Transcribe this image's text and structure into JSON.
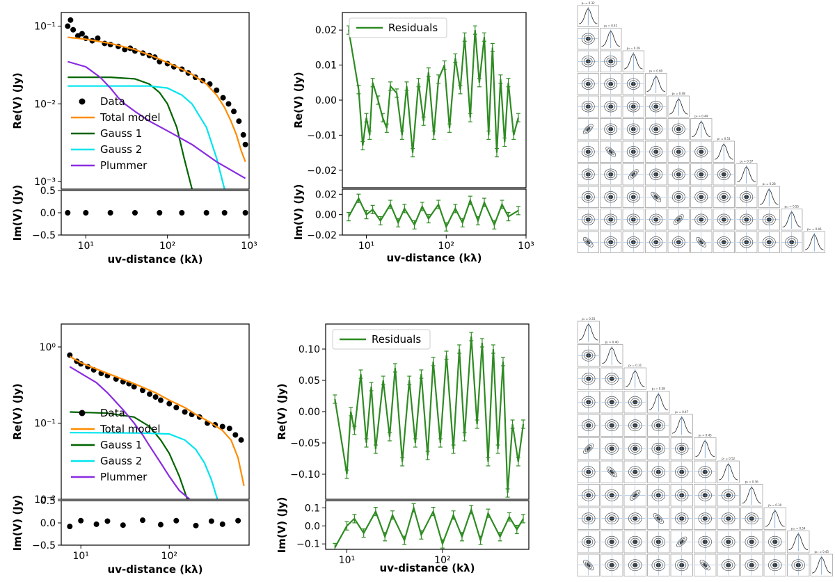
{
  "chart_data": [
    {
      "id": "row1-model",
      "type": "line+scatter",
      "panels": {
        "top": {
          "ylabel": "Re(V) (Jy)",
          "yscale": "log",
          "ylim": [
            0.0008,
            0.15
          ],
          "yticks": [
            {
              "v": 0.1,
              "t": "10⁻¹"
            },
            {
              "v": 0.01,
              "t": "10⁻²"
            },
            {
              "v": 0.001,
              "t": "10⁻³"
            }
          ]
        },
        "bottom": {
          "ylabel": "Im(V) (Jy)",
          "ylim": [
            -0.5,
            0.5
          ],
          "yticks": [
            {
              "v": 0.5,
              "t": "0.5"
            },
            {
              "v": 0.0,
              "t": "0.0"
            },
            {
              "v": -0.5,
              "t": "−0.5"
            }
          ]
        }
      },
      "xlabel": "uv-distance (kλ)",
      "xscale": "log",
      "xlim": [
        5,
        1000
      ],
      "xticks": [
        {
          "v": 10,
          "t": "10¹"
        },
        {
          "v": 100,
          "t": "10²"
        },
        {
          "v": 1000,
          "t": "10³"
        }
      ],
      "legend": {
        "position": "center-left",
        "entries": [
          "Data",
          "Total model",
          "Gauss 1",
          "Gauss 2",
          "Plummer"
        ]
      },
      "series": [
        {
          "name": "Data",
          "kind": "scatter",
          "x": [
            6,
            6.5,
            7,
            8,
            9,
            10,
            12,
            14,
            17,
            20,
            25,
            30,
            35,
            40,
            50,
            60,
            70,
            80,
            100,
            120,
            150,
            180,
            220,
            270,
            330,
            400,
            480,
            560,
            650,
            750,
            850,
            900
          ],
          "y": [
            0.1,
            0.12,
            0.09,
            0.075,
            0.08,
            0.07,
            0.065,
            0.07,
            0.06,
            0.058,
            0.055,
            0.05,
            0.052,
            0.048,
            0.045,
            0.042,
            0.04,
            0.035,
            0.033,
            0.03,
            0.028,
            0.025,
            0.022,
            0.02,
            0.018,
            0.015,
            0.012,
            0.01,
            0.008,
            0.006,
            0.004,
            0.003
          ]
        },
        {
          "name": "Total model",
          "kind": "line",
          "x": [
            6,
            10,
            20,
            40,
            70,
            100,
            150,
            200,
            300,
            400,
            500,
            600,
            700,
            800,
            900
          ],
          "y": [
            0.072,
            0.068,
            0.06,
            0.05,
            0.04,
            0.034,
            0.028,
            0.024,
            0.018,
            0.013,
            0.009,
            0.006,
            0.004,
            0.0025,
            0.0018
          ]
        },
        {
          "name": "Gauss 1",
          "kind": "line",
          "x": [
            6,
            20,
            40,
            60,
            80,
            100,
            130,
            160,
            200
          ],
          "y": [
            0.022,
            0.022,
            0.021,
            0.018,
            0.014,
            0.01,
            0.005,
            0.002,
            0.0008
          ]
        },
        {
          "name": "Gauss 2",
          "kind": "line",
          "x": [
            6,
            30,
            60,
            100,
            150,
            200,
            300,
            400,
            500
          ],
          "y": [
            0.017,
            0.017,
            0.017,
            0.016,
            0.013,
            0.01,
            0.005,
            0.002,
            0.0008
          ]
        },
        {
          "name": "Plummer",
          "kind": "line",
          "x": [
            6,
            10,
            15,
            20,
            25,
            30,
            40,
            60,
            100,
            200,
            400,
            900
          ],
          "y": [
            0.035,
            0.03,
            0.022,
            0.016,
            0.012,
            0.01,
            0.008,
            0.006,
            0.0045,
            0.003,
            0.0018,
            0.0011
          ]
        },
        {
          "name": "Im Data",
          "kind": "scatter-bottom",
          "x": [
            6,
            10,
            20,
            40,
            80,
            150,
            300,
            500,
            900
          ],
          "y": [
            0,
            0,
            0,
            0,
            0,
            0,
            0,
            0,
            0
          ]
        }
      ]
    },
    {
      "id": "row1-residuals",
      "type": "line",
      "panels": {
        "top": {
          "ylabel": "Re(V) (Jy)",
          "ylim": [
            -0.025,
            0.025
          ],
          "yticks": [
            {
              "v": 0.02,
              "t": "0.02"
            },
            {
              "v": 0.01,
              "t": "0.01"
            },
            {
              "v": 0.0,
              "t": "0.00"
            },
            {
              "v": -0.01,
              "t": "−0.01"
            },
            {
              "v": -0.02,
              "t": "−0.02"
            }
          ]
        },
        "bottom": {
          "ylabel": "Im(V) (Jy)",
          "ylim": [
            -0.02,
            0.025
          ],
          "yticks": [
            {
              "v": 0.02,
              "t": "0.02"
            },
            {
              "v": 0.0,
              "t": "0.00"
            },
            {
              "v": -0.02,
              "t": "−0.02"
            }
          ]
        }
      },
      "xlabel": "uv-distance (kλ)",
      "xscale": "log",
      "xlim": [
        5,
        1000
      ],
      "xticks": [
        {
          "v": 10,
          "t": "10¹"
        },
        {
          "v": 100,
          "t": "10²"
        },
        {
          "v": 1000,
          "t": "10³"
        }
      ],
      "legend": {
        "position": "top-left",
        "entries": [
          "Residuals"
        ]
      },
      "series": [
        {
          "name": "Residuals",
          "panel": "top",
          "x": [
            6,
            8,
            9,
            10,
            11,
            12,
            14,
            16,
            18,
            20,
            24,
            28,
            32,
            38,
            45,
            52,
            60,
            70,
            80,
            95,
            110,
            130,
            150,
            170,
            200,
            230,
            260,
            300,
            340,
            380,
            430,
            480,
            540,
            600,
            700,
            800
          ],
          "y": [
            0.02,
            0.003,
            -0.013,
            -0.005,
            -0.01,
            0.005,
            0.0,
            -0.005,
            -0.008,
            0.004,
            0.002,
            -0.01,
            0.004,
            -0.015,
            0.005,
            -0.006,
            0.008,
            -0.01,
            0.006,
            0.01,
            -0.008,
            0.012,
            0.003,
            0.018,
            -0.005,
            0.02,
            0.005,
            0.018,
            -0.01,
            0.015,
            -0.015,
            0.006,
            -0.012,
            0.005,
            -0.01,
            -0.005
          ]
        },
        {
          "name": "Residuals Im",
          "panel": "bottom",
          "x": [
            6,
            8,
            10,
            12,
            15,
            20,
            25,
            30,
            40,
            50,
            60,
            80,
            100,
            130,
            160,
            200,
            250,
            300,
            400,
            500,
            600,
            800
          ],
          "y": [
            -0.002,
            0.016,
            0.0,
            0.005,
            -0.006,
            0.01,
            -0.008,
            0.006,
            -0.01,
            0.008,
            -0.004,
            0.01,
            -0.012,
            0.006,
            -0.008,
            0.014,
            -0.006,
            0.012,
            -0.01,
            0.01,
            -0.002,
            0.004
          ]
        }
      ]
    },
    {
      "id": "row2-model",
      "type": "line+scatter",
      "panels": {
        "top": {
          "ylabel": "Re(V) (Jy)",
          "yscale": "log",
          "ylim": [
            0.01,
            2.0
          ],
          "yticks": [
            {
              "v": 1.0,
              "t": "10⁰"
            },
            {
              "v": 0.1,
              "t": "10⁻¹"
            },
            {
              "v": 0.01,
              "t": "10⁻²"
            }
          ]
        },
        "bottom": {
          "ylabel": "Im(V) (Jy)",
          "ylim": [
            -0.5,
            0.5
          ],
          "yticks": [
            {
              "v": 0.5,
              "t": "0.5"
            },
            {
              "v": 0.0,
              "t": "0.0"
            },
            {
              "v": -0.5,
              "t": "−0.5"
            }
          ]
        }
      },
      "xlabel": "uv-distance (kλ)",
      "xscale": "log",
      "xlim": [
        6,
        800
      ],
      "xticks": [
        {
          "v": 10,
          "t": "10¹"
        },
        {
          "v": 100,
          "t": "10²"
        }
      ],
      "legend": {
        "position": "center-left",
        "entries": [
          "Data",
          "Total model",
          "Gauss 1",
          "Gauss 2",
          "Plummer"
        ]
      },
      "series": [
        {
          "name": "Data",
          "kind": "scatter",
          "x": [
            7.5,
            9,
            10,
            12,
            14,
            17,
            20,
            25,
            30,
            35,
            40,
            50,
            60,
            70,
            80,
            100,
            120,
            150,
            180,
            220,
            270,
            330,
            400,
            480,
            560,
            650
          ],
          "y": [
            0.78,
            0.65,
            0.6,
            0.55,
            0.5,
            0.45,
            0.42,
            0.38,
            0.35,
            0.33,
            0.3,
            0.27,
            0.24,
            0.22,
            0.2,
            0.18,
            0.16,
            0.14,
            0.13,
            0.12,
            0.1,
            0.095,
            0.09,
            0.085,
            0.07,
            0.06
          ]
        },
        {
          "name": "Total model",
          "kind": "line",
          "x": [
            7.5,
            10,
            20,
            40,
            70,
            100,
            150,
            200,
            300,
            400,
            500,
            600,
            700
          ],
          "y": [
            0.75,
            0.62,
            0.45,
            0.33,
            0.25,
            0.2,
            0.16,
            0.13,
            0.1,
            0.08,
            0.06,
            0.035,
            0.015
          ]
        },
        {
          "name": "Gauss 1",
          "kind": "line",
          "x": [
            7.5,
            20,
            40,
            60,
            80,
            100,
            130,
            160
          ],
          "y": [
            0.14,
            0.135,
            0.12,
            0.09,
            0.06,
            0.04,
            0.02,
            0.01
          ]
        },
        {
          "name": "Gauss 2",
          "kind": "line",
          "x": [
            7.5,
            50,
            100,
            150,
            200,
            250,
            300,
            350
          ],
          "y": [
            0.075,
            0.074,
            0.072,
            0.06,
            0.045,
            0.03,
            0.018,
            0.01
          ]
        },
        {
          "name": "Plummer",
          "kind": "line",
          "x": [
            7.5,
            10,
            15,
            20,
            30,
            40,
            50,
            60,
            80,
            100,
            130,
            170
          ],
          "y": [
            0.55,
            0.45,
            0.34,
            0.25,
            0.15,
            0.1,
            0.07,
            0.05,
            0.03,
            0.02,
            0.013,
            0.01
          ]
        },
        {
          "name": "Im Data",
          "kind": "scatter-bottom",
          "x": [
            7.5,
            10,
            15,
            20,
            30,
            50,
            80,
            120,
            200,
            300,
            400,
            600
          ],
          "y": [
            -0.08,
            0.05,
            -0.03,
            0.04,
            -0.05,
            0.06,
            -0.04,
            0.05,
            -0.06,
            0.04,
            -0.03,
            0.05
          ]
        }
      ]
    },
    {
      "id": "row2-residuals",
      "type": "line",
      "panels": {
        "top": {
          "ylabel": "Re(V) (Jy)",
          "ylim": [
            -0.14,
            0.14
          ],
          "yticks": [
            {
              "v": 0.1,
              "t": "0.10"
            },
            {
              "v": 0.05,
              "t": "0.05"
            },
            {
              "v": 0.0,
              "t": "0.00"
            },
            {
              "v": -0.05,
              "t": "−0.05"
            },
            {
              "v": -0.1,
              "t": "−0.10"
            }
          ]
        },
        "bottom": {
          "ylabel": "Im(V) (Jy)",
          "ylim": [
            -0.13,
            0.14
          ],
          "yticks": [
            {
              "v": 0.1,
              "t": "0.1"
            },
            {
              "v": 0.0,
              "t": "0.0"
            },
            {
              "v": -0.1,
              "t": "−0.1"
            }
          ]
        }
      },
      "xlabel": "uv-distance (kλ)",
      "xscale": "log",
      "xlim": [
        6,
        800
      ],
      "xticks": [
        {
          "v": 10,
          "t": "10¹"
        },
        {
          "v": 100,
          "t": "10²"
        }
      ],
      "legend": {
        "position": "top-left",
        "entries": [
          "Residuals"
        ]
      },
      "series": [
        {
          "name": "Residuals",
          "panel": "top",
          "x": [
            7.5,
            10,
            11,
            12,
            14,
            16,
            18,
            20,
            24,
            28,
            32,
            38,
            45,
            52,
            60,
            70,
            80,
            95,
            110,
            130,
            150,
            170,
            200,
            230,
            260,
            300,
            340,
            380,
            430,
            480,
            540,
            620,
            700
          ],
          "y": [
            0.02,
            -0.1,
            0.0,
            -0.03,
            0.06,
            -0.05,
            0.04,
            -0.06,
            0.05,
            -0.04,
            0.07,
            -0.08,
            0.05,
            -0.05,
            0.06,
            -0.07,
            0.08,
            -0.05,
            0.09,
            -0.06,
            0.1,
            -0.04,
            0.12,
            -0.02,
            0.11,
            -0.08,
            0.1,
            -0.06,
            0.08,
            -0.13,
            -0.02,
            -0.08,
            -0.02
          ]
        },
        {
          "name": "Residuals Im",
          "panel": "bottom",
          "x": [
            7.5,
            10,
            12,
            15,
            20,
            25,
            30,
            40,
            50,
            60,
            80,
            100,
            130,
            160,
            200,
            250,
            300,
            400,
            500,
            600,
            700
          ],
          "y": [
            -0.12,
            0.0,
            0.04,
            -0.04,
            0.08,
            -0.06,
            0.06,
            -0.08,
            0.1,
            -0.05,
            0.08,
            -0.1,
            0.06,
            -0.06,
            0.09,
            -0.08,
            0.07,
            -0.06,
            0.05,
            -0.02,
            0.04
          ]
        }
      ]
    },
    {
      "id": "row1-corner",
      "type": "corner-plot",
      "n_params": 11,
      "posterior_titles": [
        "p₁ = 0.32",
        "p₂ = 0.41",
        "p₃ = 0.29",
        "p₄ = 0.60",
        "p₅ = 0.48",
        "p₆ = 0.44",
        "p₇ = 0.51",
        "p₈ = 0.37",
        "p₉ = 0.28",
        "p₁₀ = 0.55",
        "p₁₁ = 0.46"
      ]
    },
    {
      "id": "row2-corner",
      "type": "corner-plot",
      "n_params": 11,
      "posterior_titles": [
        "p₁ = 0.33",
        "p₂ = 0.40",
        "p₃ = 0.31",
        "p₄ = 0.58",
        "p₅ = 0.47",
        "p₆ = 0.45",
        "p₇ = 0.52",
        "p₈ = 0.36",
        "p₉ = 0.30",
        "p₁₀ = 0.54",
        "p₁₁ = 0.45"
      ]
    }
  ],
  "colors": {
    "data": "#000000",
    "total_model": "#ff8c00",
    "gauss1": "#006400",
    "gauss2": "#00e5ee",
    "plummer": "#8a2be2",
    "residuals": "#2e8b22",
    "corner_contour": "#333333",
    "corner_line": "#5b8fc7"
  }
}
